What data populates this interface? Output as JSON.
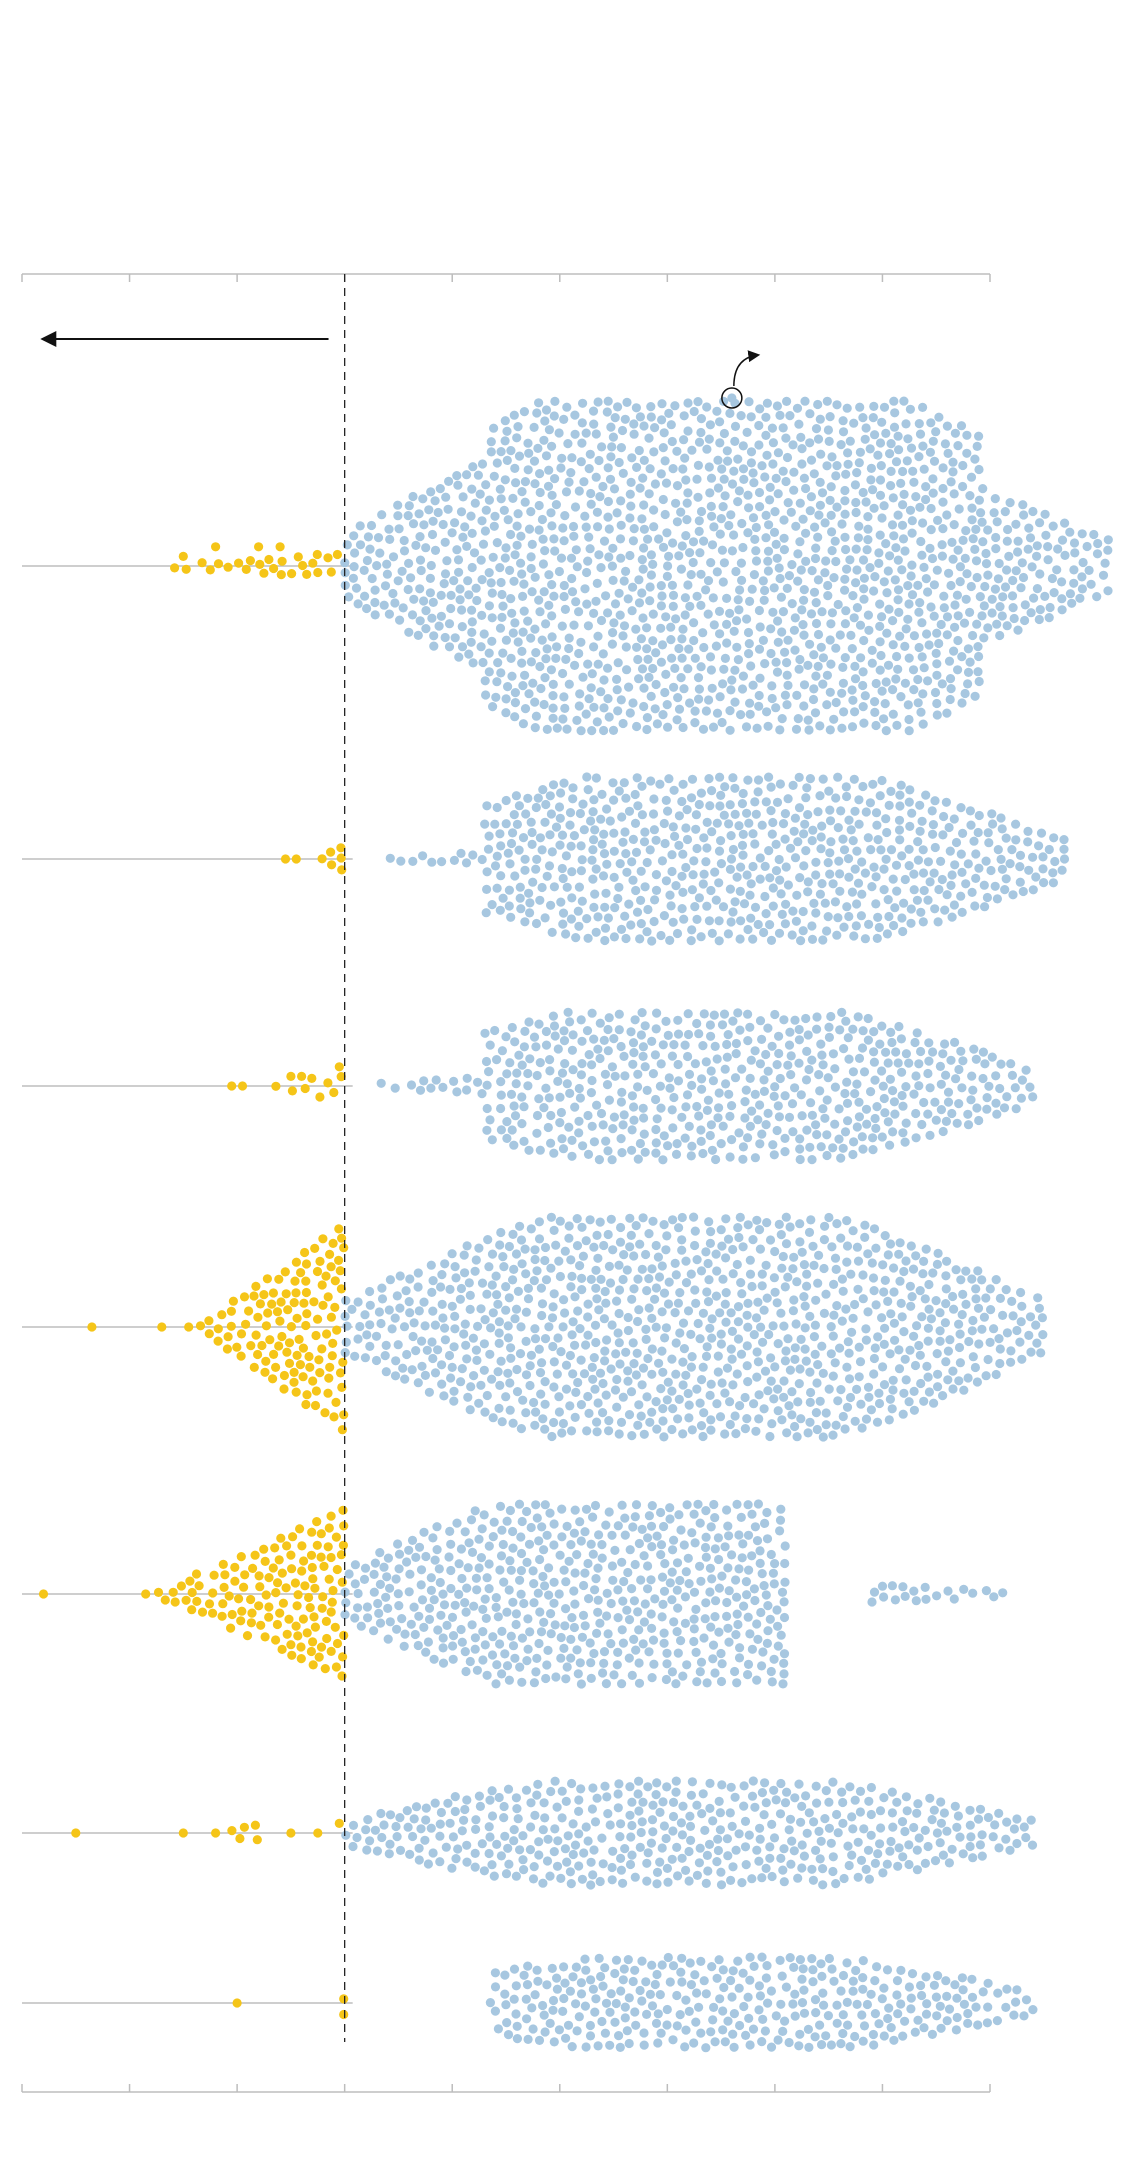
{
  "colors": {
    "below_threshold": "#F5C518",
    "above_threshold": "#A7C7E0",
    "axis_line": "#BDBDBD",
    "threshold_line": "#222222",
    "arrow": "#111111"
  },
  "chart_data": {
    "type": "scatter",
    "subtype": "beeswarm",
    "title": "",
    "xlabel": "",
    "ylabel": "",
    "xlim": [
      0,
      9
    ],
    "threshold_x": 3,
    "ticks": [
      0,
      1,
      2,
      3,
      4,
      5,
      6,
      7,
      8,
      9
    ],
    "grid": false,
    "legend": "none",
    "annotations": [
      {
        "type": "arrow",
        "direction": "left",
        "x_from": 2.85,
        "x_to": 0.2,
        "row": 0
      },
      {
        "type": "highlight-circle",
        "x": 6.6,
        "row": 0,
        "label": ""
      }
    ],
    "series": [
      {
        "name": "",
        "below": [
          {
            "from": 1.4,
            "to": 3,
            "weight": 1
          }
        ],
        "below_outliers": [
          1.5,
          1.8,
          2.2,
          2.4
        ],
        "below_count": 40,
        "above": [
          {
            "from": 3,
            "to": 4.3,
            "weight": 1.0
          },
          {
            "from": 4.3,
            "to": 8.9,
            "weight": 1.3
          },
          {
            "from": 8.9,
            "to": 10.1,
            "weight": 0.8
          }
        ],
        "above_count": 2600,
        "half_height_max": 165
      },
      {
        "name": "",
        "below": [
          {
            "from": 2.7,
            "to": 3,
            "weight": 1
          }
        ],
        "below_outliers": [
          2.45,
          2.55
        ],
        "below_count": 6,
        "above": [
          {
            "from": 3.4,
            "to": 4.3,
            "weight": 0.15
          },
          {
            "from": 4.3,
            "to": 9.7,
            "weight": 1.2
          }
        ],
        "above_count": 820,
        "half_height_max": 82
      },
      {
        "name": "",
        "below": [
          {
            "from": 1.9,
            "to": 3,
            "weight": 1
          }
        ],
        "below_outliers": [
          1.95,
          2.05,
          2.5,
          2.6,
          2.95
        ],
        "below_count": 8,
        "above": [
          {
            "from": 3.3,
            "to": 4.3,
            "weight": 0.2
          },
          {
            "from": 4.3,
            "to": 9.4,
            "weight": 1.2
          }
        ],
        "above_count": 760,
        "half_height_max": 74
      },
      {
        "name": "",
        "below": [
          {
            "from": 1.6,
            "to": 3,
            "weight": 1
          }
        ],
        "below_outliers": [
          0.65,
          1.3,
          1.55
        ],
        "below_count": 220,
        "above": [
          {
            "from": 3,
            "to": 9.5,
            "weight": 1.2
          }
        ],
        "above_count": 1700,
        "half_height_max": 110
      },
      {
        "name": "",
        "below": [
          {
            "from": 1.2,
            "to": 3,
            "weight": 1
          }
        ],
        "below_outliers": [
          0.2,
          1.15
        ],
        "below_count": 300,
        "above": [
          {
            "from": 3,
            "to": 7.1,
            "weight": 1.4
          },
          {
            "from": 7.9,
            "to": 9.2,
            "weight": 0.15
          }
        ],
        "above_count": 1150,
        "half_height_max": 90
      },
      {
        "name": "",
        "below": [
          {
            "from": 1.9,
            "to": 2.2,
            "weight": 1
          }
        ],
        "below_outliers": [
          0.5,
          1.5,
          1.8,
          2.5,
          2.75,
          2.95
        ],
        "below_count": 12,
        "above": [
          {
            "from": 3,
            "to": 9.4,
            "weight": 1.2
          }
        ],
        "above_count": 580,
        "half_height_max": 52
      },
      {
        "name": "",
        "below": [
          {
            "from": 2.98,
            "to": 3,
            "weight": 1
          }
        ],
        "below_outliers": [
          2.0
        ],
        "below_count": 2,
        "above": [
          {
            "from": 3.5,
            "to": 4.4,
            "weight": 0.08
          },
          {
            "from": 4.4,
            "to": 9.4,
            "weight": 1.2
          }
        ],
        "above_count": 460,
        "half_height_max": 46
      }
    ]
  }
}
